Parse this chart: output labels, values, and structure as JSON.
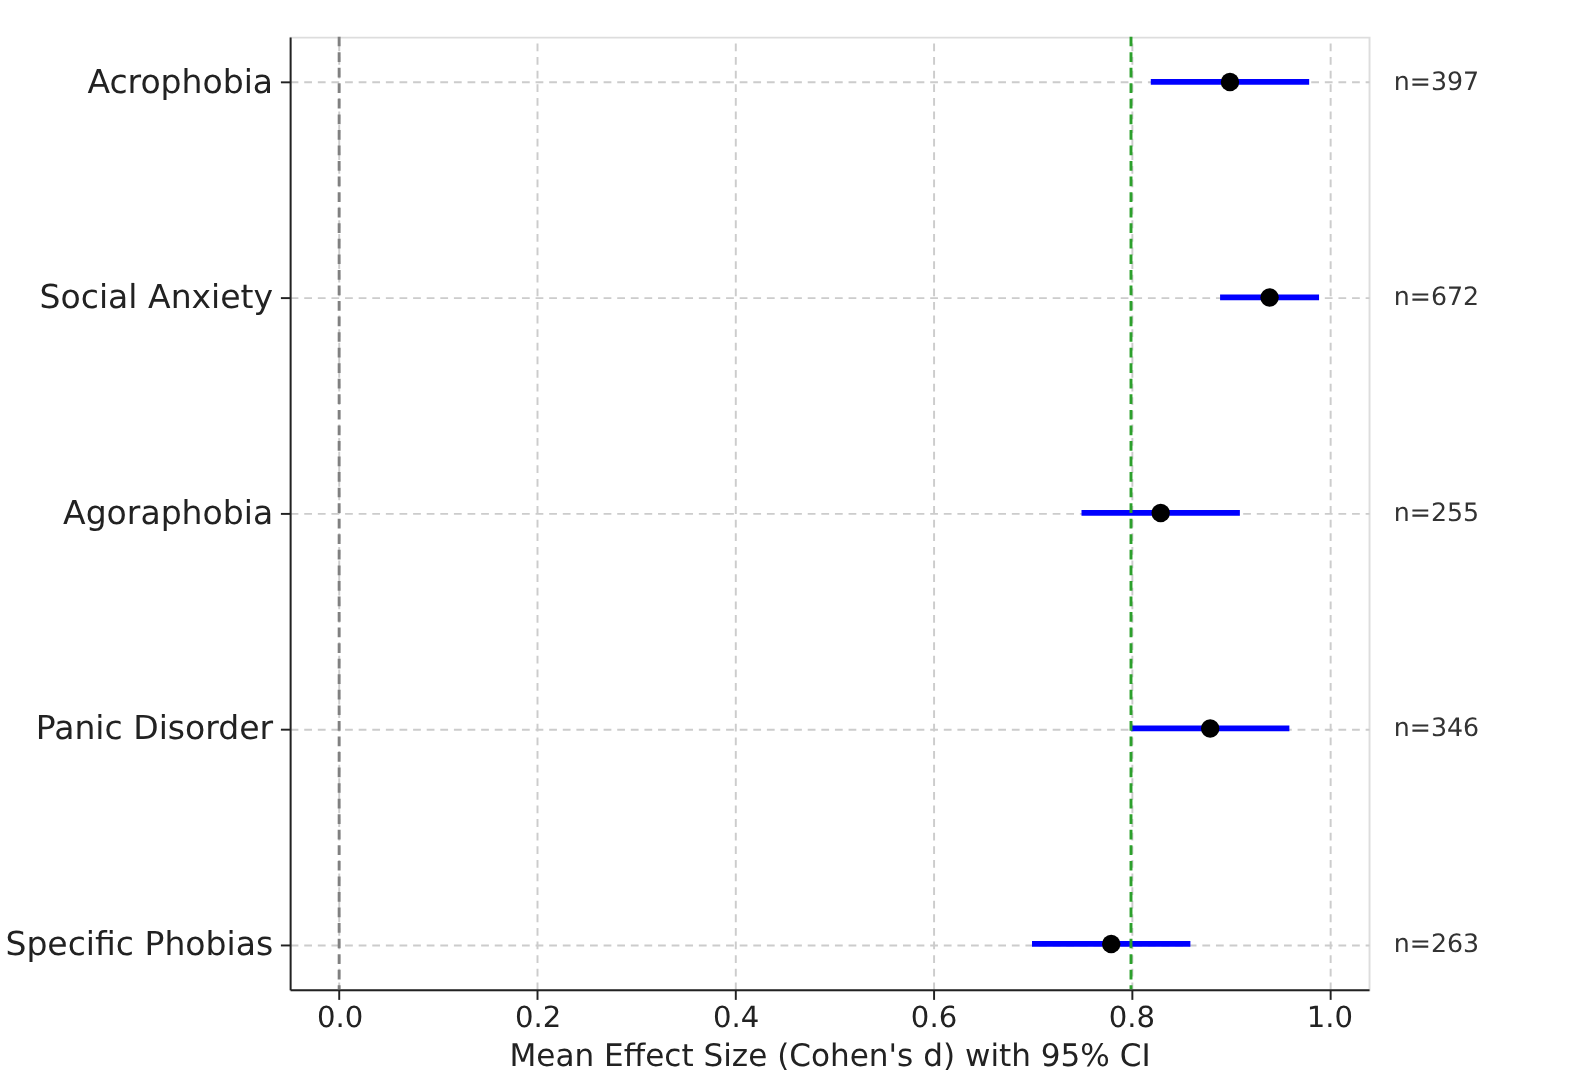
{
  "chart_data": {
    "type": "scatter",
    "orientation": "horizontal",
    "xlabel": "Mean Effect Size (Cohen's d) with 95% CI",
    "categories": [
      "Acrophobia",
      "Social Anxiety",
      "Agoraphobia",
      "Panic Disorder",
      "Specific Phobias"
    ],
    "series": [
      {
        "color": "#000000",
        "values": [
          0.9,
          0.94,
          0.83,
          0.88,
          0.78
        ],
        "errors": [
          [
            0.82,
            0.98
          ],
          [
            0.89,
            0.99
          ],
          [
            0.75,
            0.91
          ],
          [
            0.8,
            0.96
          ],
          [
            0.7,
            0.86
          ]
        ]
      }
    ],
    "xlim": [
      -0.05,
      1.04
    ],
    "xticks": [
      {
        "value": 0,
        "label": "0.0"
      },
      0.2,
      0.4,
      0.6,
      0.8,
      {
        "value": 1,
        "label": "1.0"
      }
    ],
    "ref_lines": [
      {
        "axis": "x",
        "value": 0,
        "color": "#808080",
        "line_style": "dashed"
      },
      {
        "axis": "x",
        "value": 0.8,
        "color": "#2ca02c",
        "line_style": "dashed"
      }
    ],
    "annotations": [
      "n=397",
      "n=672",
      "n=255",
      "n=346",
      "n=263"
    ],
    "grid": true,
    "marker": "circle"
  }
}
